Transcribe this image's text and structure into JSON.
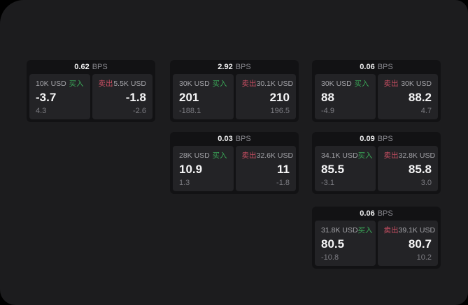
{
  "labels": {
    "buy": "买入",
    "sell": "卖出",
    "bps": "BPS"
  },
  "colors": {
    "outer_bg": "#000000",
    "window_bg": "#1c1c1e",
    "card_bg": "#121214",
    "panel_bg": "#232326",
    "buy_accent": "#3aa657",
    "sell_accent": "#c94f63"
  },
  "cards": [
    {
      "col": 1,
      "row": 1,
      "bps": "0.62",
      "buy": {
        "amount": "10K USD",
        "price": "-3.7",
        "delta": "4.3"
      },
      "sell": {
        "amount": "5.5K USD",
        "price": "-1.8",
        "delta": "-2.6"
      }
    },
    {
      "col": 2,
      "row": 1,
      "bps": "2.92",
      "buy": {
        "amount": "30K USD",
        "price": "201",
        "delta": "-188.1"
      },
      "sell": {
        "amount": "30.1K USD",
        "price": "210",
        "delta": "196.5"
      }
    },
    {
      "col": 3,
      "row": 1,
      "bps": "0.06",
      "buy": {
        "amount": "30K USD",
        "price": "88",
        "delta": "-4.9"
      },
      "sell": {
        "amount": "30K USD",
        "price": "88.2",
        "delta": "4.7"
      }
    },
    {
      "col": 2,
      "row": 2,
      "bps": "0.03",
      "buy": {
        "amount": "28K USD",
        "price": "10.9",
        "delta": "1.3"
      },
      "sell": {
        "amount": "32.6K USD",
        "price": "11",
        "delta": "-1.8"
      }
    },
    {
      "col": 3,
      "row": 2,
      "bps": "0.09",
      "buy": {
        "amount": "34.1K USD",
        "price": "85.5",
        "delta": "-3.1"
      },
      "sell": {
        "amount": "32.8K USD",
        "price": "85.8",
        "delta": "3.0"
      }
    },
    {
      "col": 3,
      "row": 3,
      "bps": "0.06",
      "buy": {
        "amount": "31.8K USD",
        "price": "80.5",
        "delta": "-10.8"
      },
      "sell": {
        "amount": "39.1K USD",
        "price": "80.7",
        "delta": "10.2"
      }
    }
  ]
}
